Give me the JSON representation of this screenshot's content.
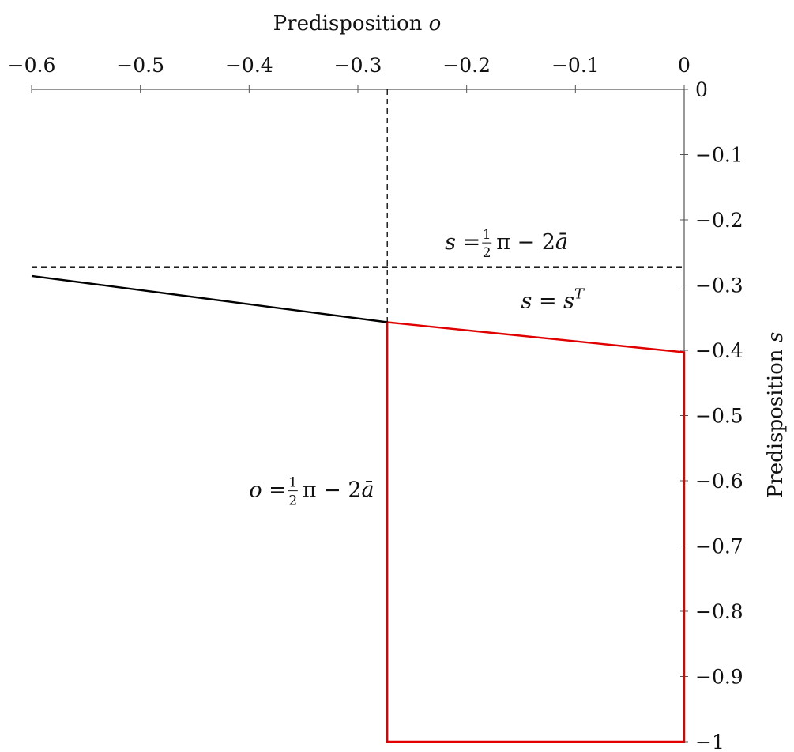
{
  "chart_data": {
    "type": "line",
    "title": "",
    "xlabel": "Predisposition o",
    "xlabel_parts": {
      "text": "Predisposition ",
      "var": "o"
    },
    "ylabel": "Predisposition s",
    "ylabel_parts": {
      "text": "Predisposition ",
      "var": "s"
    },
    "xlim": [
      -0.6,
      0
    ],
    "ylim": [
      -1,
      0
    ],
    "x_axis_position": "top",
    "y_axis_position": "right",
    "grid": false,
    "legend": "none",
    "x_ticks": [
      -0.6,
      -0.5,
      -0.4,
      -0.3,
      -0.2,
      -0.1,
      0
    ],
    "x_tick_labels": [
      "−0.6",
      "−0.5",
      "−0.4",
      "−0.3",
      "−0.2",
      "−0.1",
      "0"
    ],
    "y_ticks": [
      0,
      -0.1,
      -0.2,
      -0.3,
      -0.4,
      -0.5,
      -0.6,
      -0.7,
      -0.8,
      -0.9,
      -1
    ],
    "y_tick_labels": [
      "0",
      "−0.1",
      "−0.2",
      "−0.3",
      "−0.4",
      "−0.5",
      "−0.6",
      "−0.7",
      "−0.8",
      "−0.9",
      "−1"
    ],
    "series": [
      {
        "color": "#000000",
        "style": "solid",
        "points": [
          [
            -0.6,
            -0.286
          ],
          [
            -0.273,
            -0.357
          ]
        ]
      },
      {
        "color": "#e00000",
        "style": "solid",
        "points": [
          [
            -0.273,
            -0.357
          ],
          [
            0,
            -0.403
          ],
          [
            0,
            -1.0
          ],
          [
            -0.273,
            -1.0
          ],
          [
            -0.273,
            -0.357
          ]
        ]
      },
      {
        "color": "#000000",
        "style": "dashed",
        "points": [
          [
            -0.6,
            -0.273
          ],
          [
            0,
            -0.273
          ]
        ]
      },
      {
        "color": "#000000",
        "style": "dashed",
        "points": [
          [
            -0.273,
            0
          ],
          [
            -0.273,
            -0.357
          ]
        ]
      }
    ],
    "annotations": [
      {
        "id": "ann-s-ref",
        "x": -0.22,
        "y": -0.245,
        "lhs": "s",
        "rhs": "π − 2ā",
        "frac_num": "1",
        "frac_den": "2"
      },
      {
        "id": "ann-st",
        "x": -0.15,
        "y": -0.335,
        "lhs": "s",
        "rhs": "s",
        "sup": "T"
      },
      {
        "id": "ann-o-ref",
        "x": -0.4,
        "y": -0.625,
        "lhs": "o",
        "rhs": "π − 2ā",
        "frac_num": "1",
        "frac_den": "2"
      }
    ]
  }
}
